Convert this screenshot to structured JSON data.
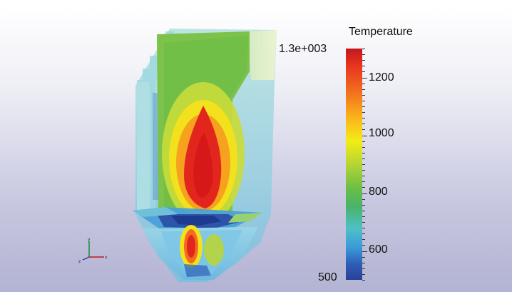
{
  "colorbar": {
    "title": "Temperature",
    "max_label": "1.3e+003",
    "min_label": "500",
    "tick_labels": [
      "1200",
      "1000",
      "800",
      "600"
    ],
    "range": [
      500,
      1300
    ],
    "colors": {
      "high": "#c4161c",
      "mid_high": "#f26b1e",
      "mid": "#f4ec16",
      "mid_low": "#6fbf44",
      "low_mid": "#4fc0c8",
      "low": "#2b3f98"
    }
  },
  "axes_triad": {
    "x_label": "x",
    "y_label": "y",
    "z_label": "z"
  }
}
